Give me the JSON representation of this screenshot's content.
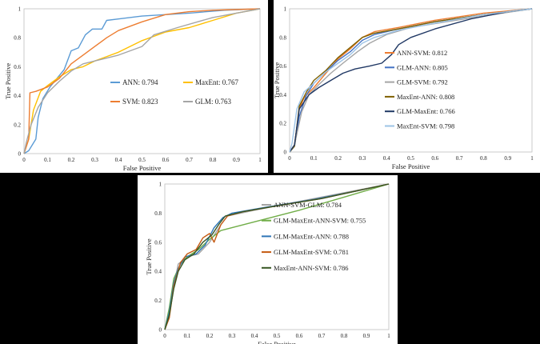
{
  "chart_data": [
    {
      "type": "line",
      "xlabel": "False Positive",
      "ylabel": "True Positive",
      "xlim": [
        0,
        1
      ],
      "ylim": [
        0,
        1
      ],
      "xticks": [
        "0",
        "0.1",
        "0.2",
        "0.3",
        "0.4",
        "0.5",
        "0.6",
        "0.7",
        "0.8",
        "0.9",
        "1"
      ],
      "yticks": [
        "0",
        "0.2",
        "0.4",
        "0.6",
        "0.8",
        "1"
      ],
      "legend_position": "center-right",
      "legend_columns": 2,
      "series": [
        {
          "name": "ANN: 0.794",
          "color": "#5b9bd5",
          "points": [
            [
              0,
              0
            ],
            [
              0.02,
              0.02
            ],
            [
              0.05,
              0.1
            ],
            [
              0.06,
              0.25
            ],
            [
              0.08,
              0.38
            ],
            [
              0.11,
              0.46
            ],
            [
              0.14,
              0.52
            ],
            [
              0.17,
              0.58
            ],
            [
              0.2,
              0.71
            ],
            [
              0.23,
              0.73
            ],
            [
              0.26,
              0.82
            ],
            [
              0.29,
              0.86
            ],
            [
              0.33,
              0.86
            ],
            [
              0.35,
              0.92
            ],
            [
              0.4,
              0.93
            ],
            [
              0.5,
              0.95
            ],
            [
              0.7,
              0.97
            ],
            [
              0.85,
              0.99
            ],
            [
              1,
              1
            ]
          ]
        },
        {
          "name": "MaxEnt: 0.767",
          "color": "#ffc000",
          "points": [
            [
              0,
              0
            ],
            [
              0.02,
              0.1
            ],
            [
              0.04,
              0.3
            ],
            [
              0.07,
              0.43
            ],
            [
              0.1,
              0.47
            ],
            [
              0.15,
              0.53
            ],
            [
              0.2,
              0.58
            ],
            [
              0.25,
              0.6
            ],
            [
              0.3,
              0.64
            ],
            [
              0.4,
              0.7
            ],
            [
              0.5,
              0.78
            ],
            [
              0.6,
              0.84
            ],
            [
              0.7,
              0.87
            ],
            [
              0.8,
              0.92
            ],
            [
              0.9,
              0.97
            ],
            [
              1,
              1
            ]
          ]
        },
        {
          "name": "SVM: 0.823",
          "color": "#ed7d31",
          "points": [
            [
              0,
              0
            ],
            [
              0.02,
              0.1
            ],
            [
              0.025,
              0.42
            ],
            [
              0.05,
              0.43
            ],
            [
              0.1,
              0.46
            ],
            [
              0.15,
              0.52
            ],
            [
              0.2,
              0.62
            ],
            [
              0.25,
              0.68
            ],
            [
              0.3,
              0.74
            ],
            [
              0.35,
              0.8
            ],
            [
              0.4,
              0.85
            ],
            [
              0.5,
              0.91
            ],
            [
              0.6,
              0.96
            ],
            [
              0.7,
              0.98
            ],
            [
              0.8,
              0.99
            ],
            [
              1,
              1
            ]
          ]
        },
        {
          "name": "GLM: 0.763",
          "color": "#a5a5a5",
          "points": [
            [
              0,
              0
            ],
            [
              0.01,
              0.08
            ],
            [
              0.03,
              0.2
            ],
            [
              0.06,
              0.32
            ],
            [
              0.1,
              0.42
            ],
            [
              0.15,
              0.5
            ],
            [
              0.2,
              0.57
            ],
            [
              0.25,
              0.62
            ],
            [
              0.3,
              0.64
            ],
            [
              0.4,
              0.68
            ],
            [
              0.5,
              0.74
            ],
            [
              0.55,
              0.82
            ],
            [
              0.65,
              0.87
            ],
            [
              0.8,
              0.94
            ],
            [
              0.9,
              0.97
            ],
            [
              1,
              1
            ]
          ]
        }
      ]
    },
    {
      "type": "line",
      "xlabel": "False Positive",
      "ylabel": "True Positive",
      "xlim": [
        0,
        1
      ],
      "ylim": [
        0,
        1
      ],
      "xticks": [
        "0",
        "0.1",
        "0.2",
        "0.3",
        "0.4",
        "0.5",
        "0.6",
        "0.7",
        "0.8",
        "0.9",
        "1"
      ],
      "yticks": [
        "0",
        "0.2",
        "0.4",
        "0.6",
        "0.8",
        "1"
      ],
      "legend_position": "center-right",
      "legend_columns": 1,
      "series": [
        {
          "name": "ANN-SVM: 0.812",
          "color": "#ed7d31",
          "points": [
            [
              0,
              0
            ],
            [
              0.02,
              0.05
            ],
            [
              0.04,
              0.3
            ],
            [
              0.06,
              0.38
            ],
            [
              0.1,
              0.45
            ],
            [
              0.15,
              0.55
            ],
            [
              0.2,
              0.65
            ],
            [
              0.25,
              0.72
            ],
            [
              0.3,
              0.8
            ],
            [
              0.35,
              0.84
            ],
            [
              0.45,
              0.87
            ],
            [
              0.6,
              0.92
            ],
            [
              0.8,
              0.97
            ],
            [
              1,
              1
            ]
          ]
        },
        {
          "name": "GLM-ANN: 0.805",
          "color": "#4472c4",
          "points": [
            [
              0,
              0
            ],
            [
              0.02,
              0.04
            ],
            [
              0.04,
              0.25
            ],
            [
              0.07,
              0.4
            ],
            [
              0.1,
              0.48
            ],
            [
              0.15,
              0.56
            ],
            [
              0.2,
              0.64
            ],
            [
              0.25,
              0.7
            ],
            [
              0.3,
              0.78
            ],
            [
              0.35,
              0.82
            ],
            [
              0.45,
              0.86
            ],
            [
              0.6,
              0.91
            ],
            [
              0.8,
              0.96
            ],
            [
              1,
              1
            ]
          ]
        },
        {
          "name": "GLM-SVM: 0.792",
          "color": "#a5a5a5",
          "points": [
            [
              0,
              0
            ],
            [
              0.02,
              0.05
            ],
            [
              0.05,
              0.28
            ],
            [
              0.08,
              0.4
            ],
            [
              0.12,
              0.47
            ],
            [
              0.17,
              0.55
            ],
            [
              0.22,
              0.62
            ],
            [
              0.28,
              0.7
            ],
            [
              0.33,
              0.76
            ],
            [
              0.4,
              0.82
            ],
            [
              0.5,
              0.87
            ],
            [
              0.65,
              0.91
            ],
            [
              0.8,
              0.95
            ],
            [
              1,
              1
            ]
          ]
        },
        {
          "name": "MaxEnt-ANN: 0.808",
          "color": "#7f6000",
          "points": [
            [
              0,
              0
            ],
            [
              0.02,
              0.04
            ],
            [
              0.04,
              0.32
            ],
            [
              0.07,
              0.42
            ],
            [
              0.1,
              0.5
            ],
            [
              0.15,
              0.57
            ],
            [
              0.2,
              0.66
            ],
            [
              0.25,
              0.73
            ],
            [
              0.3,
              0.8
            ],
            [
              0.35,
              0.83
            ],
            [
              0.45,
              0.86
            ],
            [
              0.6,
              0.91
            ],
            [
              0.8,
              0.96
            ],
            [
              1,
              1
            ]
          ]
        },
        {
          "name": "GLM-MaxEnt: 0.766",
          "color": "#203864",
          "points": [
            [
              0,
              0
            ],
            [
              0.02,
              0.05
            ],
            [
              0.04,
              0.3
            ],
            [
              0.08,
              0.4
            ],
            [
              0.12,
              0.45
            ],
            [
              0.17,
              0.5
            ],
            [
              0.22,
              0.55
            ],
            [
              0.27,
              0.58
            ],
            [
              0.33,
              0.6
            ],
            [
              0.38,
              0.62
            ],
            [
              0.42,
              0.68
            ],
            [
              0.45,
              0.75
            ],
            [
              0.5,
              0.8
            ],
            [
              0.6,
              0.86
            ],
            [
              0.75,
              0.93
            ],
            [
              0.9,
              0.98
            ],
            [
              1,
              1
            ]
          ]
        },
        {
          "name": "MaxEnt-SVM: 0.798",
          "color": "#9dc3e6",
          "points": [
            [
              0,
              0
            ],
            [
              0.01,
              0.06
            ],
            [
              0.03,
              0.3
            ],
            [
              0.06,
              0.42
            ],
            [
              0.1,
              0.48
            ],
            [
              0.15,
              0.56
            ],
            [
              0.2,
              0.62
            ],
            [
              0.25,
              0.68
            ],
            [
              0.3,
              0.76
            ],
            [
              0.35,
              0.8
            ],
            [
              0.45,
              0.85
            ],
            [
              0.6,
              0.9
            ],
            [
              0.8,
              0.96
            ],
            [
              1,
              1
            ]
          ]
        }
      ]
    },
    {
      "type": "line",
      "xlabel": "False Positive",
      "ylabel": "True Positive",
      "xlim": [
        0,
        1
      ],
      "ylim": [
        0,
        1
      ],
      "xticks": [
        "0",
        "0.1",
        "0.2",
        "0.3",
        "0.4",
        "0.5",
        "0.6",
        "0.7",
        "0.8",
        "0.9",
        "1"
      ],
      "yticks": [
        "0",
        "0.2",
        "0.4",
        "0.6",
        "0.8",
        "1"
      ],
      "legend_position": "center-right",
      "legend_columns": 1,
      "series": [
        {
          "name": "ANN-SVM-GLM: 0.784",
          "color": "#a5a5a5",
          "points": [
            [
              0,
              0
            ],
            [
              0.02,
              0.1
            ],
            [
              0.04,
              0.3
            ],
            [
              0.06,
              0.45
            ],
            [
              0.1,
              0.5
            ],
            [
              0.15,
              0.52
            ],
            [
              0.2,
              0.6
            ],
            [
              0.25,
              0.72
            ],
            [
              0.28,
              0.78
            ],
            [
              0.4,
              0.82
            ],
            [
              0.6,
              0.88
            ],
            [
              0.8,
              0.94
            ],
            [
              1,
              1
            ]
          ]
        },
        {
          "name": "GLM-MaxEnt-ANN-SVM: 0.755",
          "color": "#70ad47",
          "points": [
            [
              0,
              0
            ],
            [
              0.02,
              0.15
            ],
            [
              0.04,
              0.35
            ],
            [
              0.07,
              0.45
            ],
            [
              0.1,
              0.5
            ],
            [
              0.15,
              0.55
            ],
            [
              0.2,
              0.62
            ],
            [
              0.25,
              0.68
            ],
            [
              0.4,
              0.74
            ],
            [
              0.6,
              0.82
            ],
            [
              0.8,
              0.91
            ],
            [
              1,
              1
            ]
          ]
        },
        {
          "name": "GLM-MaxEnt-ANN: 0.788",
          "color": "#2e75b6",
          "points": [
            [
              0,
              0
            ],
            [
              0.02,
              0.12
            ],
            [
              0.04,
              0.32
            ],
            [
              0.06,
              0.42
            ],
            [
              0.09,
              0.5
            ],
            [
              0.14,
              0.52
            ],
            [
              0.18,
              0.58
            ],
            [
              0.22,
              0.7
            ],
            [
              0.26,
              0.77
            ],
            [
              0.3,
              0.8
            ],
            [
              0.45,
              0.84
            ],
            [
              0.65,
              0.89
            ],
            [
              0.85,
              0.95
            ],
            [
              1,
              1
            ]
          ]
        },
        {
          "name": "GLM-MaxEnt-SVM: 0.781",
          "color": "#c55a11",
          "points": [
            [
              0,
              0
            ],
            [
              0.02,
              0.08
            ],
            [
              0.04,
              0.3
            ],
            [
              0.07,
              0.46
            ],
            [
              0.1,
              0.52
            ],
            [
              0.14,
              0.55
            ],
            [
              0.17,
              0.63
            ],
            [
              0.2,
              0.66
            ],
            [
              0.22,
              0.6
            ],
            [
              0.25,
              0.72
            ],
            [
              0.28,
              0.78
            ],
            [
              0.35,
              0.81
            ],
            [
              0.5,
              0.85
            ],
            [
              0.7,
              0.9
            ],
            [
              0.85,
              0.95
            ],
            [
              1,
              1
            ]
          ]
        },
        {
          "name": "MaxEnt-ANN-SVM: 0.786",
          "color": "#375623",
          "points": [
            [
              0,
              0
            ],
            [
              0.02,
              0.1
            ],
            [
              0.04,
              0.28
            ],
            [
              0.06,
              0.4
            ],
            [
              0.09,
              0.48
            ],
            [
              0.13,
              0.52
            ],
            [
              0.17,
              0.6
            ],
            [
              0.21,
              0.65
            ],
            [
              0.24,
              0.72
            ],
            [
              0.27,
              0.78
            ],
            [
              0.35,
              0.81
            ],
            [
              0.5,
              0.85
            ],
            [
              0.7,
              0.9
            ],
            [
              0.85,
              0.95
            ],
            [
              1,
              1
            ]
          ]
        }
      ]
    }
  ]
}
